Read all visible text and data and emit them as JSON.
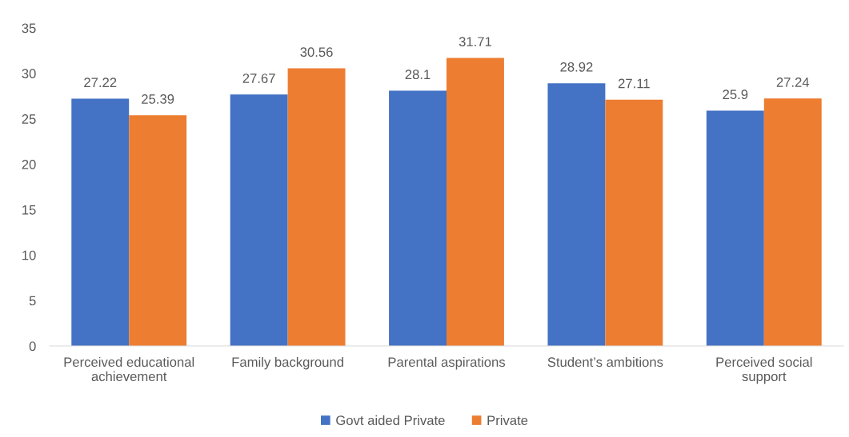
{
  "chart_data": {
    "type": "bar",
    "categories": [
      "Perceived educational\nachievement",
      "Family background",
      "Parental aspirations",
      "Student’s ambitions",
      "Perceived social\nsupport"
    ],
    "series": [
      {
        "name": "Govt aided Private",
        "color": "#4472c4",
        "values": [
          27.22,
          27.67,
          28.1,
          28.92,
          25.9
        ]
      },
      {
        "name": "Private",
        "color": "#ed7d31",
        "values": [
          25.39,
          30.56,
          31.71,
          27.11,
          27.24
        ]
      }
    ],
    "ylim": [
      0,
      35
    ],
    "yticks": [
      0,
      5,
      10,
      15,
      20,
      25,
      30,
      35
    ],
    "grid": false,
    "legend": "bottom",
    "data_labels": true
  }
}
